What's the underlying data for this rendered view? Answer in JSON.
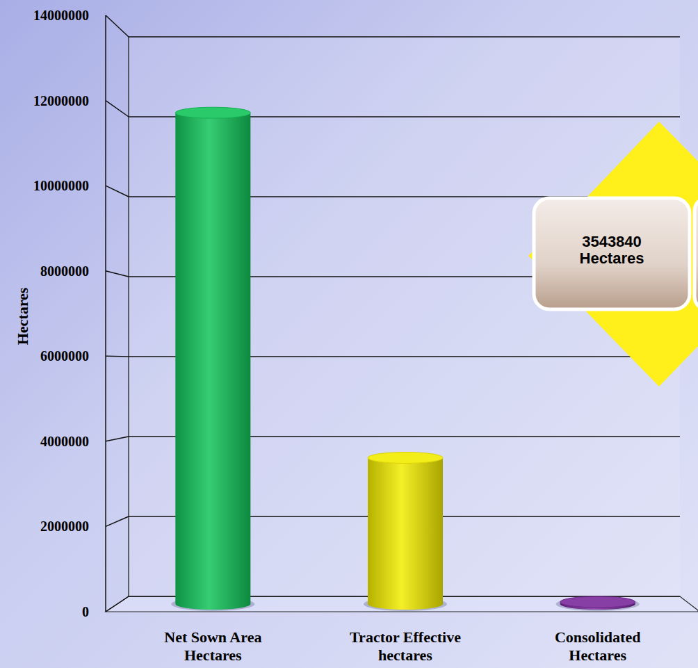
{
  "chart_data": {
    "type": "bar",
    "y_label": "Hectares",
    "categories": [
      "Net Sown Area\nHectares",
      "Tractor Effective\nhectares",
      "Consolidated\nHectares"
    ],
    "values": [
      11900000,
      3543840,
      50000
    ],
    "colors": [
      "#12c45a",
      "#f2ec00",
      "#7a2a9c"
    ],
    "ylim": [
      0,
      14000000
    ],
    "yticks": [
      0,
      2000000,
      4000000,
      6000000,
      8000000,
      10000000,
      12000000,
      14000000
    ],
    "grid": true,
    "annotations": [
      {
        "text": "3543840\nHectares"
      }
    ]
  }
}
